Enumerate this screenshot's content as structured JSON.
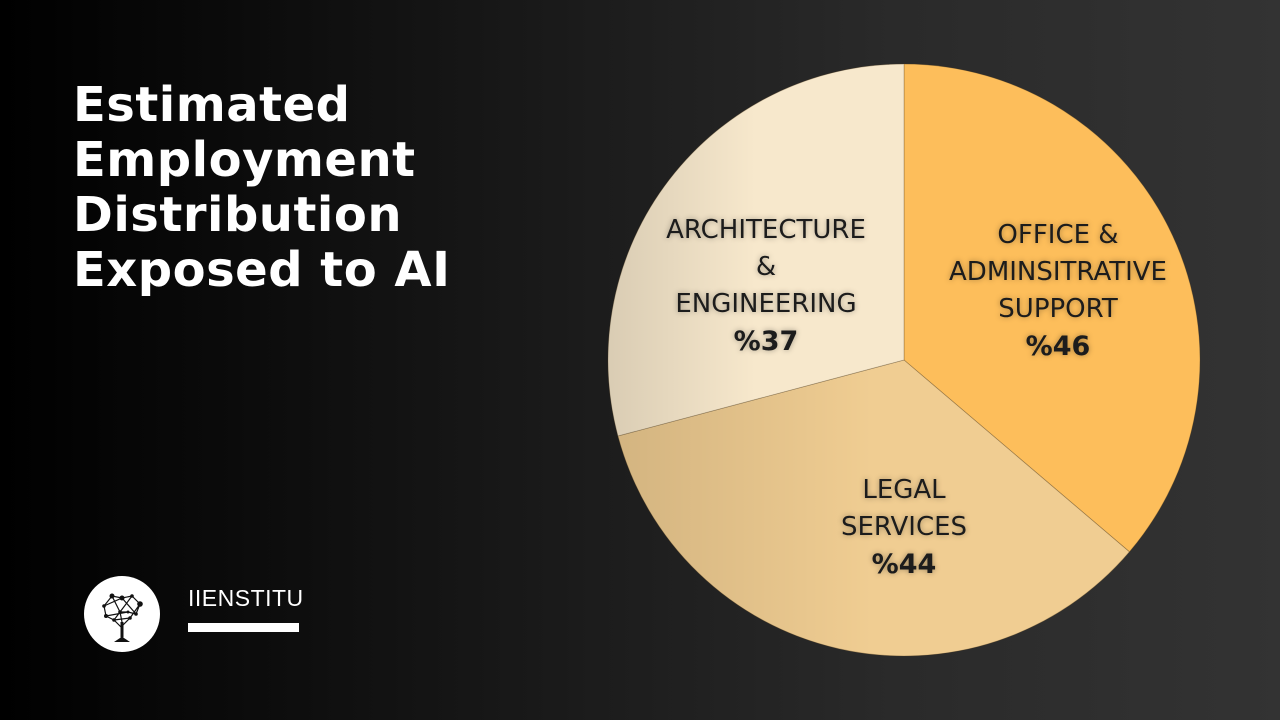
{
  "header": {
    "title_lines": [
      "Estimated",
      "Employment",
      "Distribution",
      "Exposed to AI"
    ]
  },
  "brand": {
    "name": "IIENSTITU",
    "logo_icon": "tree-network-icon"
  },
  "chart_data": {
    "type": "pie",
    "title": "Estimated Employment Distribution Exposed to AI",
    "start_angle": "12 o'clock, clockwise",
    "slices": [
      {
        "label": "OFFICE &\nADMINSITRATIVE\nSUPPORT",
        "value": 46,
        "value_label": "%46",
        "color": "#FDBE5B"
      },
      {
        "label": "LEGAL\nSERVICES",
        "value": 44,
        "value_label": "%44",
        "color": "#F0CD92"
      },
      {
        "label": "ARCHITECTURE\n&\nENGINEERING",
        "value": 37,
        "value_label": "%37",
        "color": "#F7E8CC"
      }
    ],
    "legend": "none"
  }
}
